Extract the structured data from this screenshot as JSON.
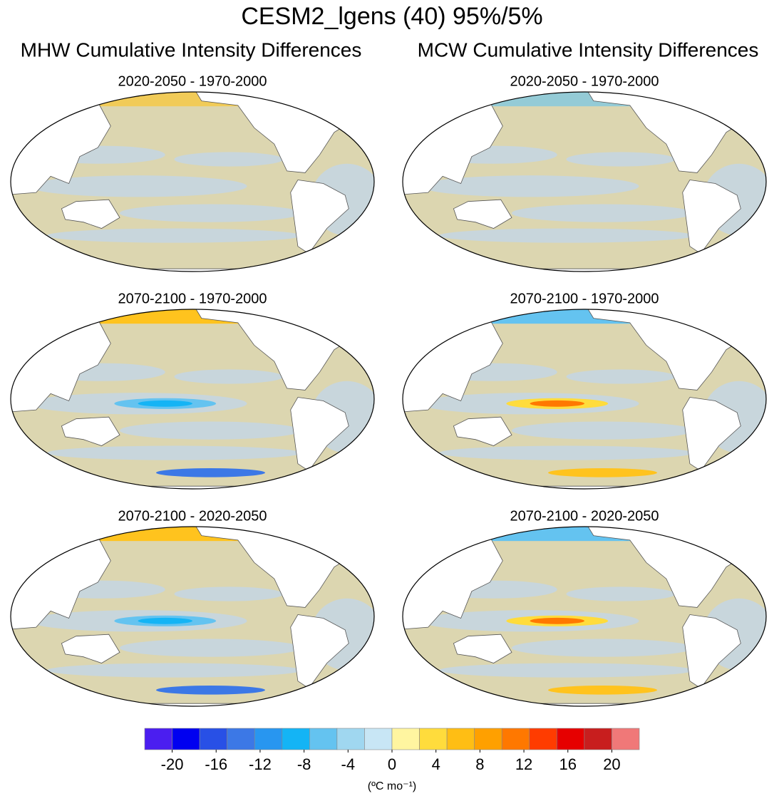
{
  "title": "CESM2_lgens (40) 95%/5%",
  "columns": [
    "MHW Cumulative Intensity Differences",
    "MCW Cumulative Intensity Differences"
  ],
  "panels": [
    {
      "title": "2020-2050 - 1970-2000"
    },
    {
      "title": "2020-2050 - 1970-2000"
    },
    {
      "title": "2070-2100 - 1970-2000"
    },
    {
      "title": "2070-2100 - 1970-2000"
    },
    {
      "title": "2070-2100 - 2020-2050"
    },
    {
      "title": "2070-2100 - 2020-2050"
    }
  ],
  "colorbar": {
    "colors": [
      "#4b1ef0",
      "#0000f0",
      "#2850e6",
      "#3c78e6",
      "#2896f0",
      "#14b4f5",
      "#64c3f0",
      "#a0d7f0",
      "#c8e6f5",
      "#fff5a0",
      "#ffdc3c",
      "#ffbe14",
      "#ffa000",
      "#ff7800",
      "#ff3c00",
      "#e60000",
      "#c81e1e",
      "#f07878"
    ],
    "xlim": [
      -22.5,
      22.5
    ],
    "xticks": [
      -20,
      -16,
      -12,
      -8,
      -4,
      0,
      4,
      8,
      12,
      16,
      20
    ],
    "label": "(ºC mo⁻¹)"
  }
}
